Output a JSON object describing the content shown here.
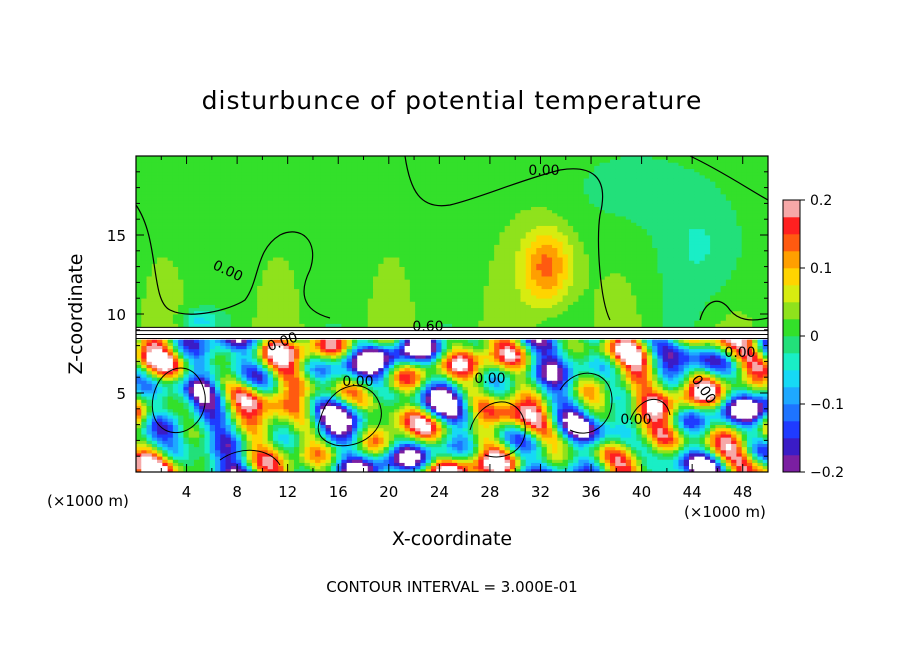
{
  "chart_data": {
    "type": "heatmap",
    "title": "disturbunce of potential temperature",
    "xlabel": "X-coordinate",
    "ylabel": "Z-coordinate",
    "x_unit_left": "(×1000 m)",
    "x_unit_right": "(×1000 m)",
    "xlim": [
      0,
      50
    ],
    "ylim": [
      0,
      20
    ],
    "x_ticks": [
      4,
      8,
      12,
      16,
      20,
      24,
      28,
      32,
      36,
      40,
      44,
      48
    ],
    "y_ticks": [
      5,
      10,
      15
    ],
    "colorbar": {
      "min": -0.2,
      "max": 0.2,
      "tick_values": [
        0.2,
        0.1,
        0,
        -0.1,
        -0.2
      ],
      "tick_labels": [
        "0.2",
        "0.1",
        "0",
        "−0.1",
        "−0.2"
      ]
    },
    "contour_labels": [
      "0.00",
      "0.00",
      "0.60",
      "0.00",
      "0.00",
      "0.00",
      "0.00",
      "0.00",
      "0.00"
    ],
    "footer": "CONTOUR INTERVAL = 3.000E-01",
    "legend": "right"
  }
}
